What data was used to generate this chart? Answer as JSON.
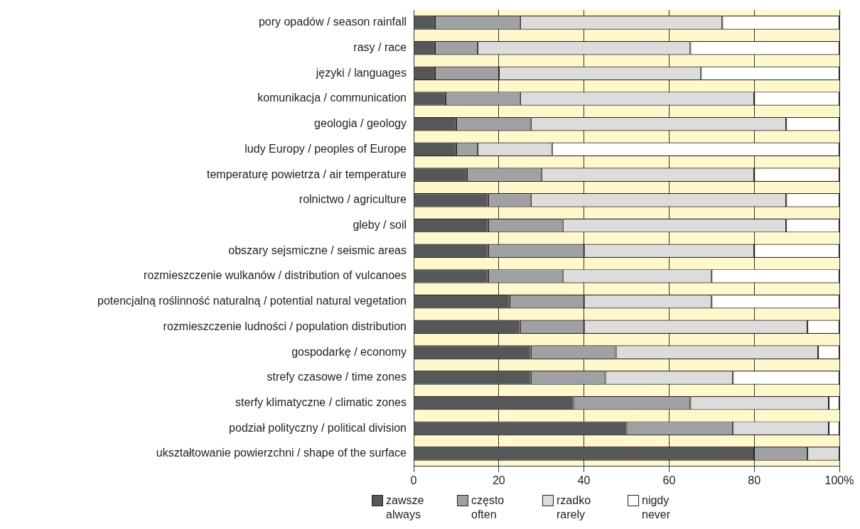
{
  "chart_data": {
    "type": "bar",
    "orientation": "horizontal",
    "stacked": true,
    "grid": "x",
    "legend": "bottom",
    "categories": [
      "pory opadów / season rainfall",
      "rasy / race",
      "języki / languages",
      "komunikacja / communication",
      "geologia / geology",
      "ludy Europy / peoples of Europe",
      "temperaturę powietrza / air temperature",
      "rolnictwo / agriculture",
      "gleby / soil",
      "obszary sejsmiczne / seismic areas",
      "rozmieszczenie wulkanów / distribution of vulcanoes",
      "potencjalną roślinność naturalną / potential natural vegetation",
      "rozmieszczenie ludności / population distribution",
      "gospodarkę / economy",
      "strefy czasowe / time zones",
      "sterfy klimatyczne / climatic zones",
      "podział polityczny / political division",
      "ukształtowanie powierzchni / shape of the surface"
    ],
    "xlim": [
      0,
      100
    ],
    "xticks": [
      0,
      20,
      40,
      60,
      80,
      {
        "value": 100,
        "label": "100%"
      }
    ],
    "series": [
      {
        "name": "zawsze always",
        "color": "#555759",
        "values": [
          5,
          5,
          5,
          7.5,
          10,
          10,
          12.5,
          17.5,
          17.5,
          17.5,
          17.5,
          22.5,
          25,
          27.5,
          27.5,
          37.5,
          50,
          80
        ]
      },
      {
        "name": "często often",
        "color": "#a0a1a4",
        "values": [
          20,
          10,
          15,
          17.5,
          17.5,
          5,
          17.5,
          10,
          17.5,
          22.5,
          17.5,
          17.5,
          15,
          20,
          17.5,
          27.5,
          25,
          12.5
        ]
      },
      {
        "name": "rzadko rarely",
        "color": "#dcdcdd",
        "values": [
          47.5,
          50,
          47.5,
          55,
          60,
          17.5,
          50,
          60,
          52.5,
          40,
          35,
          30,
          52.5,
          47.5,
          30,
          32.5,
          22.5,
          7.5
        ]
      },
      {
        "name": "nigdy never",
        "color": "#ffffff",
        "values": [
          27.5,
          35,
          32.5,
          20,
          12.5,
          67.5,
          20,
          12.5,
          12.5,
          20,
          30,
          30,
          7.5,
          5,
          25,
          2.5,
          2.5,
          0
        ]
      }
    ]
  }
}
